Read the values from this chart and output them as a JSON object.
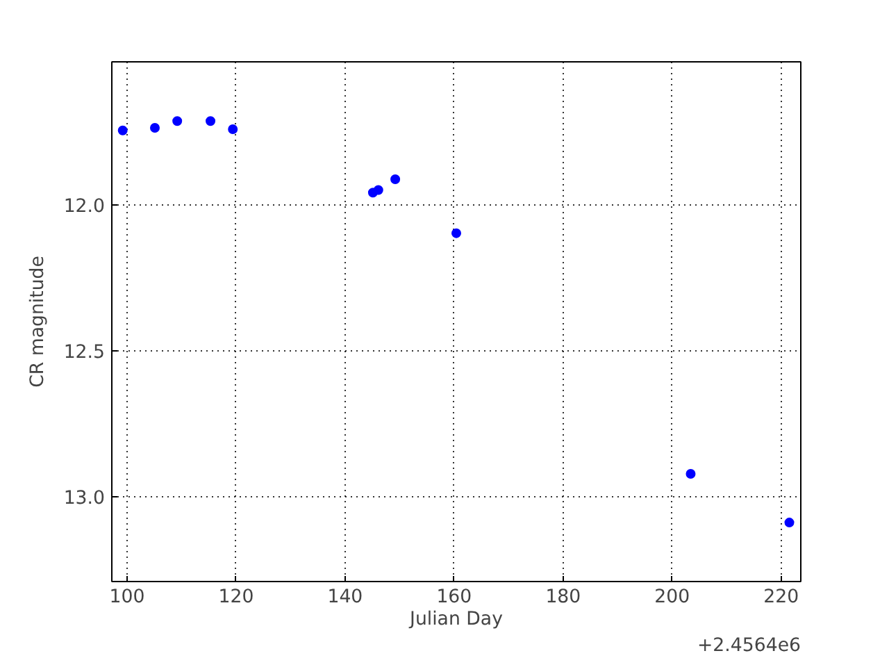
{
  "chart_data": {
    "type": "scatter",
    "xlabel": "Julian Day",
    "ylabel": "CR magnitude",
    "annotations": [
      "+2.4564e6"
    ],
    "x": [
      99.2,
      105.1,
      109.2,
      115.3,
      119.4,
      145.1,
      146.1,
      149.2,
      160.4,
      203.4,
      221.5
    ],
    "series": [
      {
        "color": "#0000ff",
        "values": [
          11.745,
          11.736,
          11.713,
          11.713,
          11.741,
          11.958,
          11.949,
          11.912,
          12.097,
          12.921,
          13.088
        ]
      }
    ],
    "xlim": [
      97.2,
      223.6
    ],
    "ylim": [
      13.29,
      11.51
    ],
    "xticks": [
      100,
      120,
      140,
      160,
      180,
      200,
      220
    ],
    "yticks": [
      {
        "value": 12.0,
        "label": "12.0"
      },
      {
        "value": 12.5,
        "label": "12.5"
      },
      {
        "value": 13.0,
        "label": "13.0"
      }
    ],
    "grid": true,
    "marker": "circle"
  }
}
